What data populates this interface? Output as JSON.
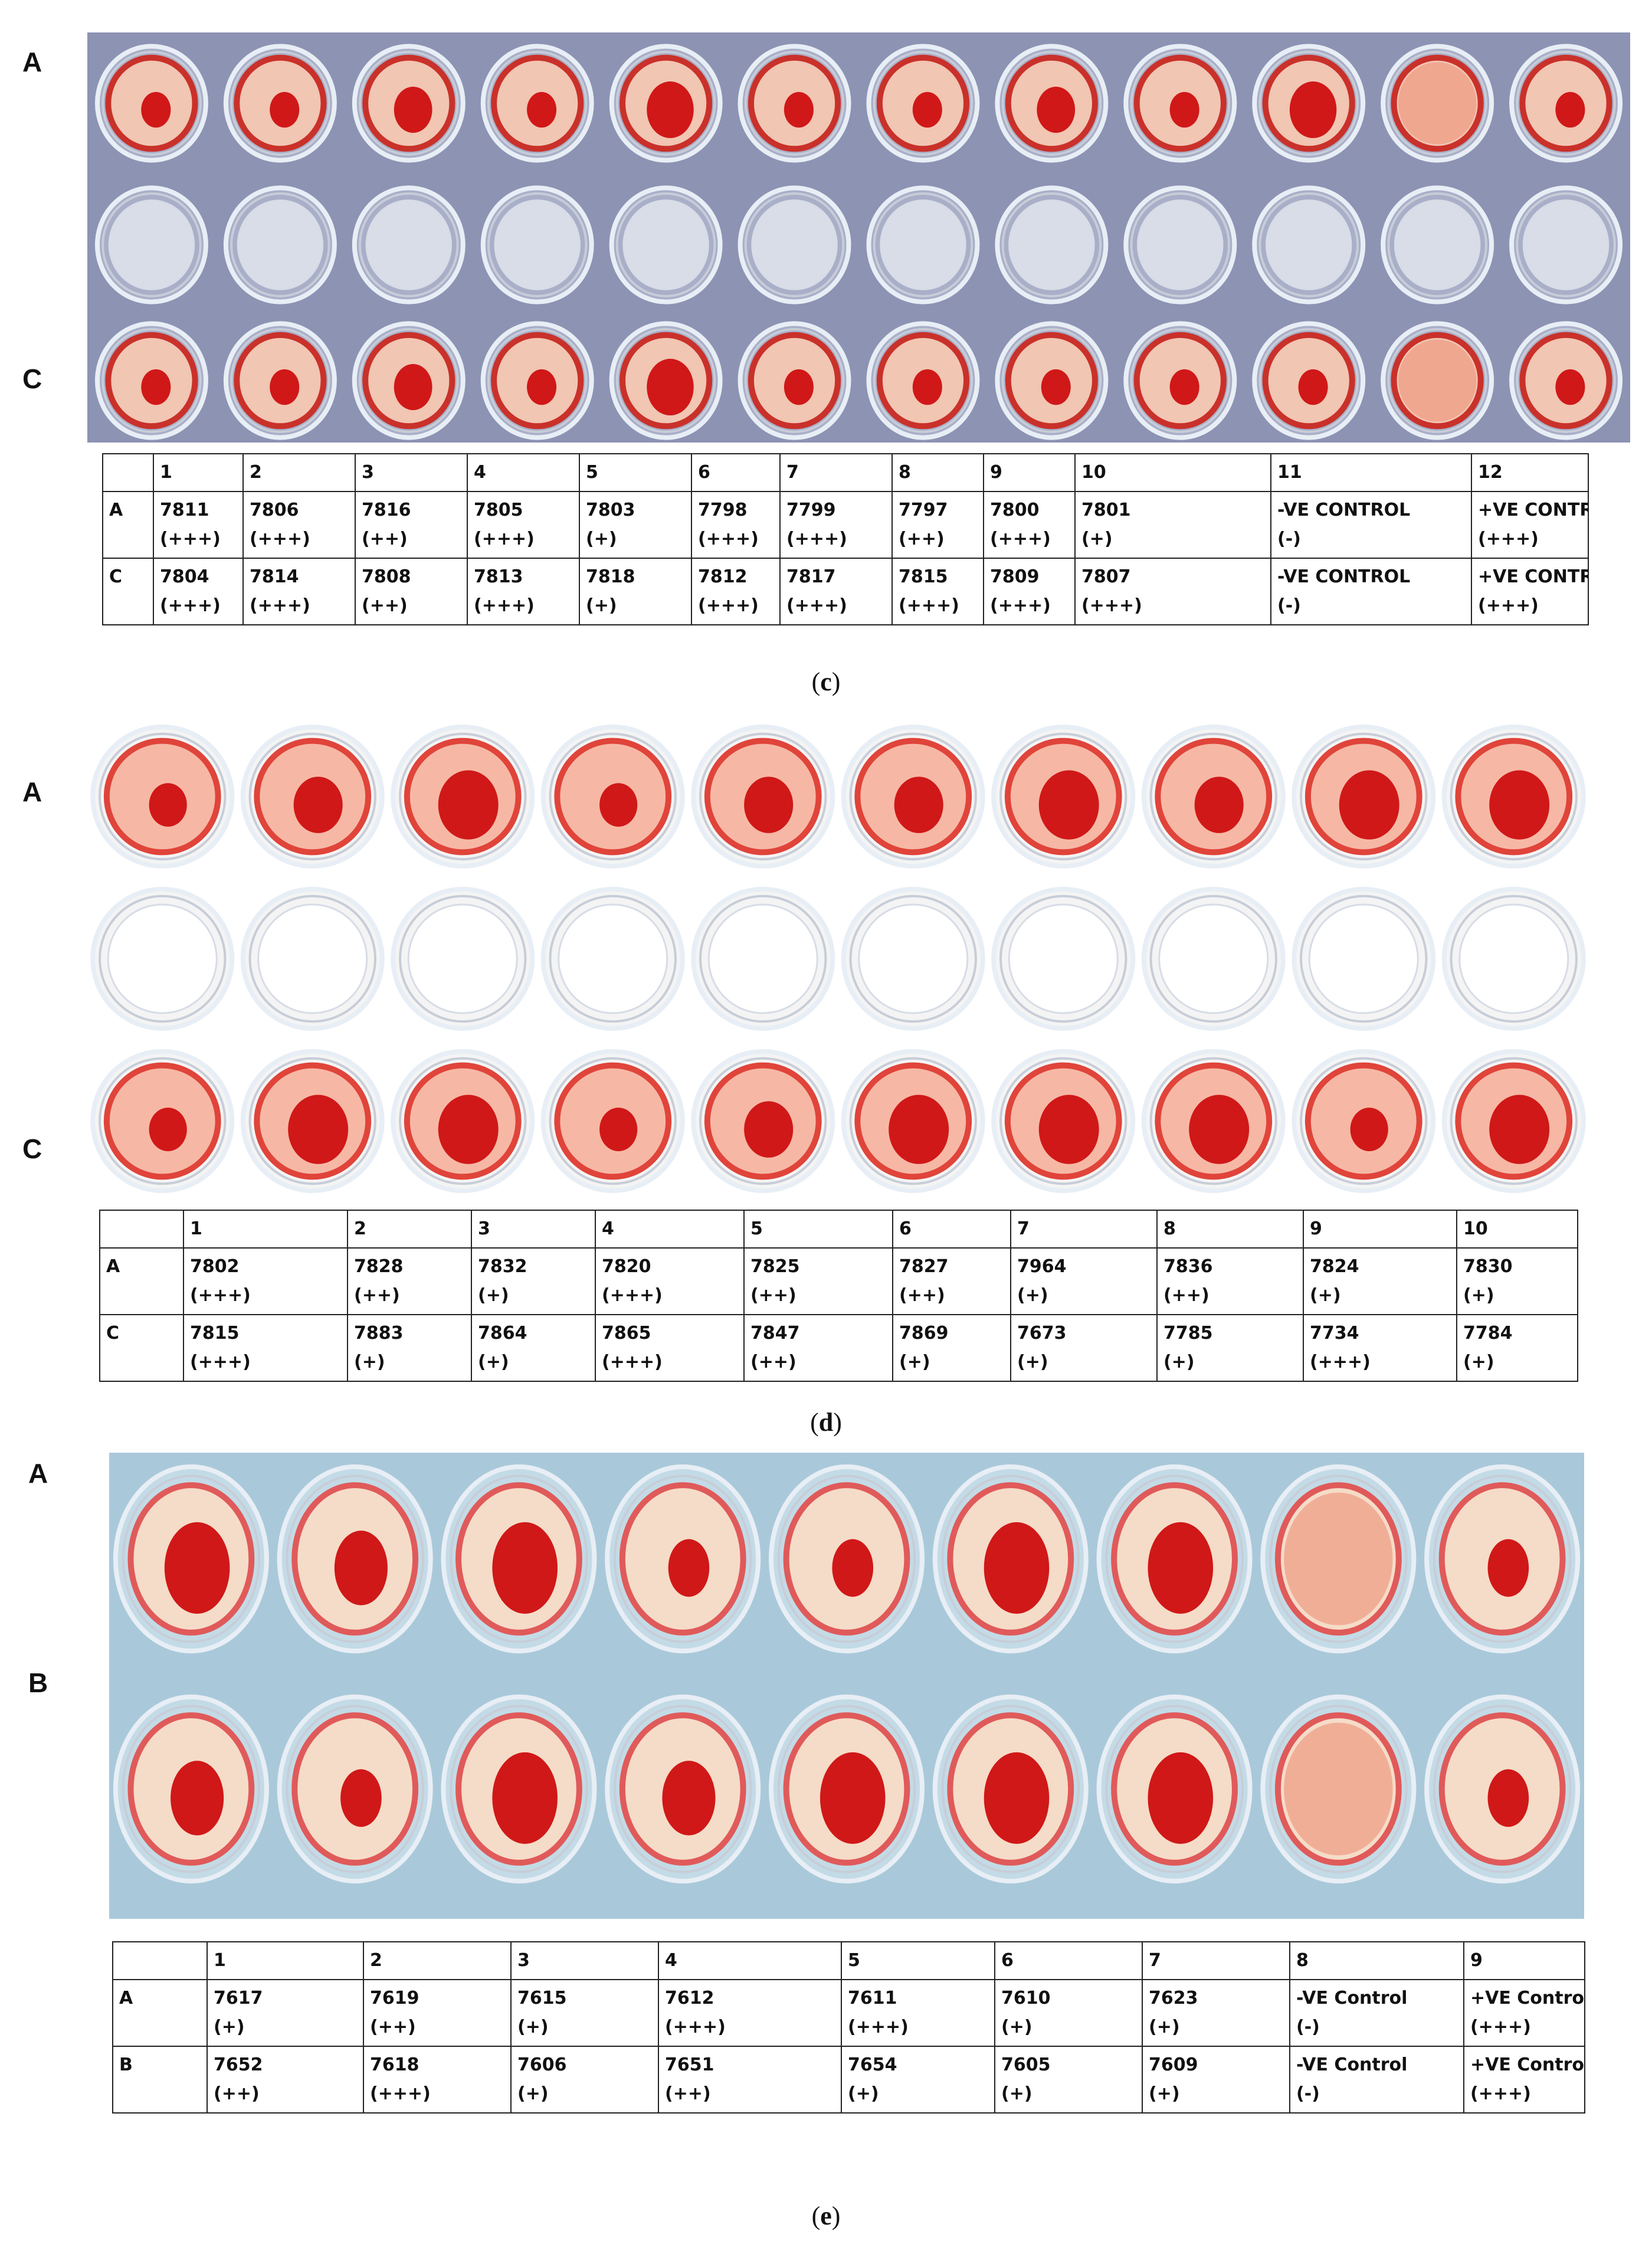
{
  "colors": {
    "blood": "#d01818",
    "serum_pink": "#f3b9a8",
    "background_c": "#8c93b3",
    "background_d": "#ffffff",
    "background_e": "#a9c9da"
  },
  "panels": [
    {
      "id": "c",
      "caption": "c",
      "row_labels": [
        "A",
        "C"
      ],
      "columns": [
        "1",
        "2",
        "3",
        "4",
        "5",
        "6",
        "7",
        "8",
        "9",
        "10",
        "11",
        "12"
      ],
      "rows": [
        {
          "label": "A",
          "cells": [
            {
              "id": "7811",
              "score": "(+++)"
            },
            {
              "id": "7806",
              "score": "(+++)"
            },
            {
              "id": "7816",
              "score": "(++)"
            },
            {
              "id": "7805",
              "score": "(+++)"
            },
            {
              "id": "7803",
              "score": "(+)"
            },
            {
              "id": "7798",
              "score": "(+++)"
            },
            {
              "id": "7799",
              "score": "(+++)"
            },
            {
              "id": "7797",
              "score": "(++)"
            },
            {
              "id": "7800",
              "score": "(+++)"
            },
            {
              "id": "7801",
              "score": "(+)"
            },
            {
              "id": "-VE CONTROL",
              "score": "(-)"
            },
            {
              "id": "+VE CONTROL",
              "score": "(+++)"
            }
          ]
        },
        {
          "label": "C",
          "cells": [
            {
              "id": "7804",
              "score": "(+++)"
            },
            {
              "id": "7814",
              "score": "(+++)"
            },
            {
              "id": "7808",
              "score": "(++)"
            },
            {
              "id": "7813",
              "score": "(+++)"
            },
            {
              "id": "7818",
              "score": "(+)"
            },
            {
              "id": "7812",
              "score": "(+++)"
            },
            {
              "id": "7817",
              "score": "(+++)"
            },
            {
              "id": "7815",
              "score": "(+++)"
            },
            {
              "id": "7809",
              "score": "(+++)"
            },
            {
              "id": "7807",
              "score": "(+++)"
            },
            {
              "id": "-VE CONTROL",
              "score": "(-)"
            },
            {
              "id": "+VE CONTROL",
              "score": "(+++)"
            }
          ]
        }
      ]
    },
    {
      "id": "d",
      "caption": "d",
      "row_labels": [
        "A",
        "C"
      ],
      "columns": [
        "1",
        "2",
        "3",
        "4",
        "5",
        "6",
        "7",
        "8",
        "9",
        "10"
      ],
      "rows": [
        {
          "label": "A",
          "cells": [
            {
              "id": "7802",
              "score": "(+++)"
            },
            {
              "id": "7828",
              "score": "(++)"
            },
            {
              "id": "7832",
              "score": "(+)"
            },
            {
              "id": "7820",
              "score": "(+++)"
            },
            {
              "id": "7825",
              "score": "(++)"
            },
            {
              "id": "7827",
              "score": "(++)"
            },
            {
              "id": "7964",
              "score": "(+)"
            },
            {
              "id": "7836",
              "score": "(++)"
            },
            {
              "id": "7824",
              "score": "(+)"
            },
            {
              "id": "7830",
              "score": "(+)"
            }
          ]
        },
        {
          "label": "C",
          "cells": [
            {
              "id": "7815",
              "score": "(+++)"
            },
            {
              "id": "7883",
              "score": "(+)"
            },
            {
              "id": "7864",
              "score": "(+)"
            },
            {
              "id": "7865",
              "score": "(+++)"
            },
            {
              "id": "7847",
              "score": "(++)"
            },
            {
              "id": "7869",
              "score": "(+)"
            },
            {
              "id": "7673",
              "score": "(+)"
            },
            {
              "id": "7785",
              "score": "(+)"
            },
            {
              "id": "7734",
              "score": "(+++)"
            },
            {
              "id": "7784",
              "score": "(+)"
            }
          ]
        }
      ]
    },
    {
      "id": "e",
      "caption": "e",
      "row_labels": [
        "A",
        "B"
      ],
      "columns": [
        "1",
        "2",
        "3",
        "4",
        "5",
        "6",
        "7",
        "8",
        "9"
      ],
      "rows": [
        {
          "label": "A",
          "cells": [
            {
              "id": "7617",
              "score": "(+)"
            },
            {
              "id": "7619",
              "score": "(++)"
            },
            {
              "id": "7615",
              "score": "(+)"
            },
            {
              "id": "7612",
              "score": "(+++)"
            },
            {
              "id": "7611",
              "score": "(+++)"
            },
            {
              "id": "7610",
              "score": "(+)"
            },
            {
              "id": "7623",
              "score": "(+)"
            },
            {
              "id": "-VE Control",
              "score": "(-)"
            },
            {
              "id": "+VE Control",
              "score": "(+++)"
            }
          ]
        },
        {
          "label": "B",
          "cells": [
            {
              "id": "7652",
              "score": "(++)"
            },
            {
              "id": "7618",
              "score": "(+++)"
            },
            {
              "id": "7606",
              "score": "(+)"
            },
            {
              "id": "7651",
              "score": "(++)"
            },
            {
              "id": "7654",
              "score": "(+)"
            },
            {
              "id": "7605",
              "score": "(+)"
            },
            {
              "id": "7609",
              "score": "(+)"
            },
            {
              "id": "-VE Control",
              "score": "(-)"
            },
            {
              "id": "+VE Control",
              "score": "(+++)"
            }
          ]
        }
      ]
    }
  ]
}
